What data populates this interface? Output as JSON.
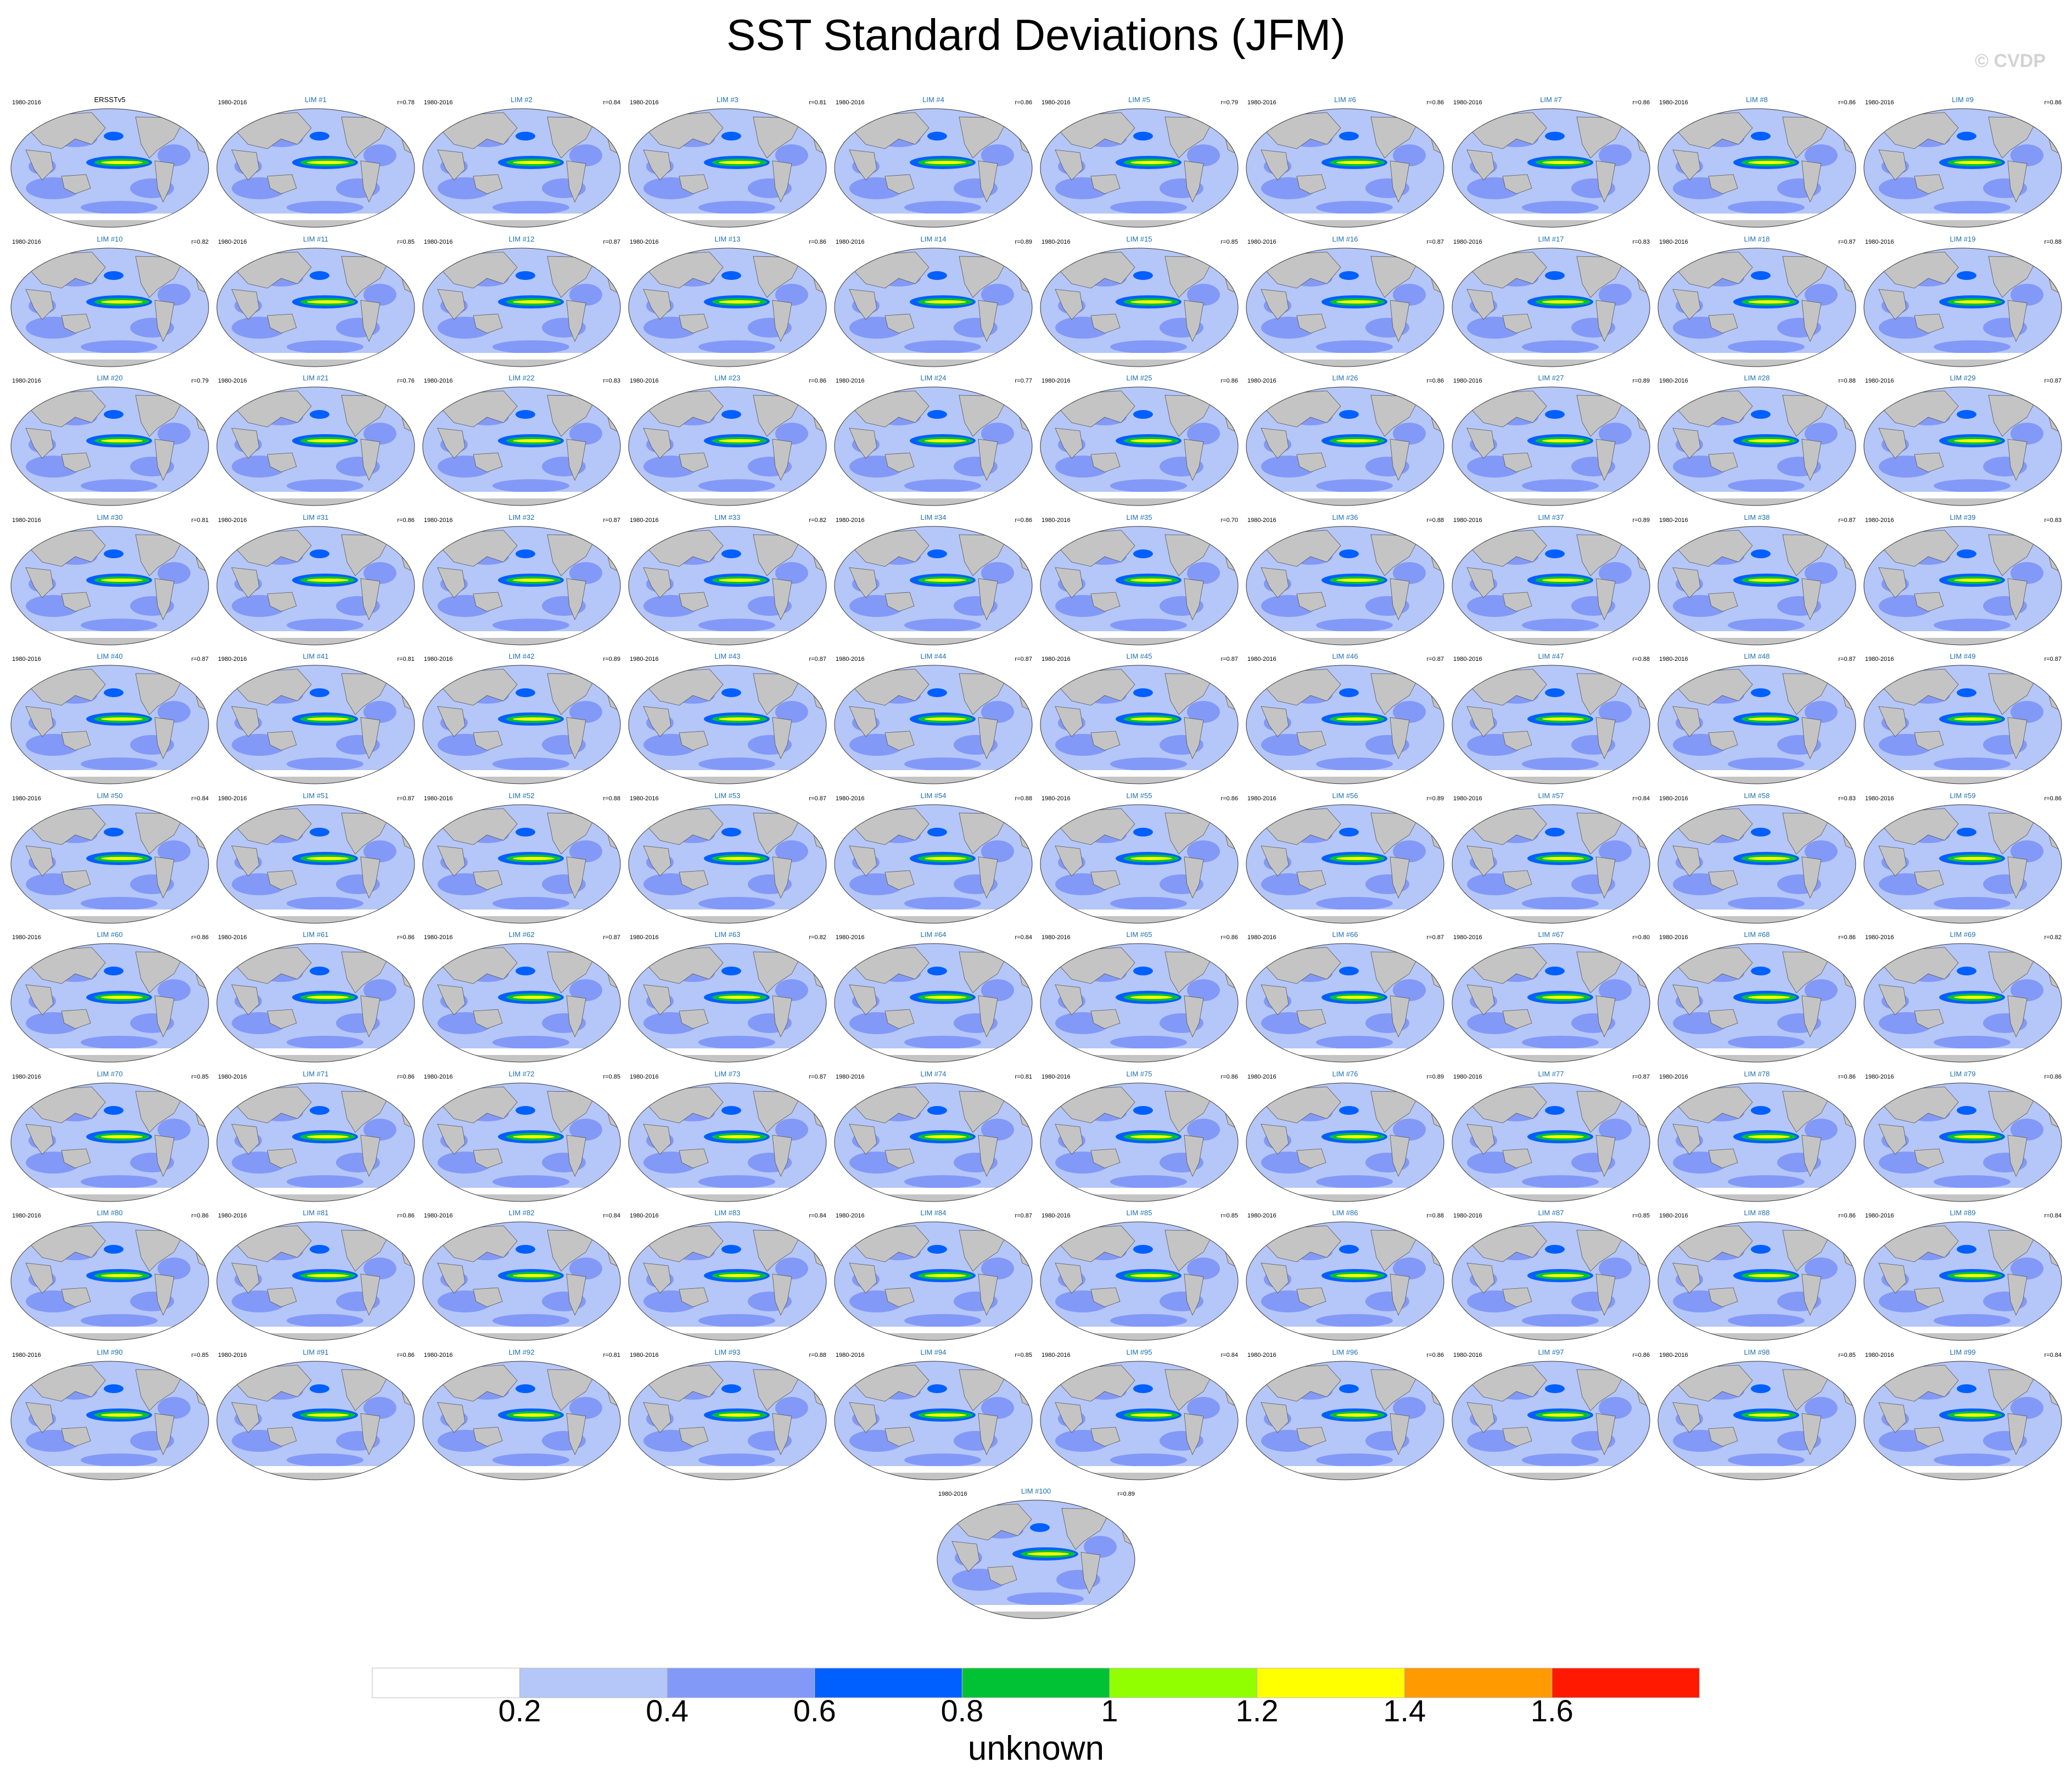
{
  "title": "SST Standard Deviations (JFM)",
  "credit": "© CVDP",
  "period": "1980-2016",
  "panels": [
    {
      "label": "ERSSTv5",
      "r": ""
    },
    {
      "label": "LIM #1",
      "r": "r=0.78"
    },
    {
      "label": "LIM #2",
      "r": "r=0.84"
    },
    {
      "label": "LIM #3",
      "r": "r=0.81"
    },
    {
      "label": "LIM #4",
      "r": "r=0.86"
    },
    {
      "label": "LIM #5",
      "r": "r=0.79"
    },
    {
      "label": "LIM #6",
      "r": "r=0.86"
    },
    {
      "label": "LIM #7",
      "r": "r=0.86"
    },
    {
      "label": "LIM #8",
      "r": "r=0.86"
    },
    {
      "label": "LIM #9",
      "r": "r=0.86"
    },
    {
      "label": "LIM #10",
      "r": "r=0.82"
    },
    {
      "label": "LIM #11",
      "r": "r=0.85"
    },
    {
      "label": "LIM #12",
      "r": "r=0.87"
    },
    {
      "label": "LIM #13",
      "r": "r=0.86"
    },
    {
      "label": "LIM #14",
      "r": "r=0.89"
    },
    {
      "label": "LIM #15",
      "r": "r=0.85"
    },
    {
      "label": "LIM #16",
      "r": "r=0.87"
    },
    {
      "label": "LIM #17",
      "r": "r=0.83"
    },
    {
      "label": "LIM #18",
      "r": "r=0.87"
    },
    {
      "label": "LIM #19",
      "r": "r=0.88"
    },
    {
      "label": "LIM #20",
      "r": "r=0.79"
    },
    {
      "label": "LIM #21",
      "r": "r=0.76"
    },
    {
      "label": "LIM #22",
      "r": "r=0.83"
    },
    {
      "label": "LIM #23",
      "r": "r=0.86"
    },
    {
      "label": "LIM #24",
      "r": "r=0.77"
    },
    {
      "label": "LIM #25",
      "r": "r=0.86"
    },
    {
      "label": "LIM #26",
      "r": "r=0.86"
    },
    {
      "label": "LIM #27",
      "r": "r=0.89"
    },
    {
      "label": "LIM #28",
      "r": "r=0.88"
    },
    {
      "label": "LIM #29",
      "r": "r=0.87"
    },
    {
      "label": "LIM #30",
      "r": "r=0.81"
    },
    {
      "label": "LIM #31",
      "r": "r=0.86"
    },
    {
      "label": "LIM #32",
      "r": "r=0.87"
    },
    {
      "label": "LIM #33",
      "r": "r=0.82"
    },
    {
      "label": "LIM #34",
      "r": "r=0.86"
    },
    {
      "label": "LIM #35",
      "r": "r=0.70"
    },
    {
      "label": "LIM #36",
      "r": "r=0.88"
    },
    {
      "label": "LIM #37",
      "r": "r=0.89"
    },
    {
      "label": "LIM #38",
      "r": "r=0.87"
    },
    {
      "label": "LIM #39",
      "r": "r=0.83"
    },
    {
      "label": "LIM #40",
      "r": "r=0.87"
    },
    {
      "label": "LIM #41",
      "r": "r=0.81"
    },
    {
      "label": "LIM #42",
      "r": "r=0.89"
    },
    {
      "label": "LIM #43",
      "r": "r=0.87"
    },
    {
      "label": "LIM #44",
      "r": "r=0.87"
    },
    {
      "label": "LIM #45",
      "r": "r=0.87"
    },
    {
      "label": "LIM #46",
      "r": "r=0.87"
    },
    {
      "label": "LIM #47",
      "r": "r=0.88"
    },
    {
      "label": "LIM #48",
      "r": "r=0.87"
    },
    {
      "label": "LIM #49",
      "r": "r=0.87"
    },
    {
      "label": "LIM #50",
      "r": "r=0.84"
    },
    {
      "label": "LIM #51",
      "r": "r=0.87"
    },
    {
      "label": "LIM #52",
      "r": "r=0.88"
    },
    {
      "label": "LIM #53",
      "r": "r=0.87"
    },
    {
      "label": "LIM #54",
      "r": "r=0.88"
    },
    {
      "label": "LIM #55",
      "r": "r=0.86"
    },
    {
      "label": "LIM #56",
      "r": "r=0.89"
    },
    {
      "label": "LIM #57",
      "r": "r=0.84"
    },
    {
      "label": "LIM #58",
      "r": "r=0.83"
    },
    {
      "label": "LIM #59",
      "r": "r=0.86"
    },
    {
      "label": "LIM #60",
      "r": "r=0.86"
    },
    {
      "label": "LIM #61",
      "r": "r=0.86"
    },
    {
      "label": "LIM #62",
      "r": "r=0.87"
    },
    {
      "label": "LIM #63",
      "r": "r=0.82"
    },
    {
      "label": "LIM #64",
      "r": "r=0.84"
    },
    {
      "label": "LIM #65",
      "r": "r=0.86"
    },
    {
      "label": "LIM #66",
      "r": "r=0.87"
    },
    {
      "label": "LIM #67",
      "r": "r=0.80"
    },
    {
      "label": "LIM #68",
      "r": "r=0.86"
    },
    {
      "label": "LIM #69",
      "r": "r=0.82"
    },
    {
      "label": "LIM #70",
      "r": "r=0.85"
    },
    {
      "label": "LIM #71",
      "r": "r=0.86"
    },
    {
      "label": "LIM #72",
      "r": "r=0.85"
    },
    {
      "label": "LIM #73",
      "r": "r=0.87"
    },
    {
      "label": "LIM #74",
      "r": "r=0.81"
    },
    {
      "label": "LIM #75",
      "r": "r=0.86"
    },
    {
      "label": "LIM #76",
      "r": "r=0.89"
    },
    {
      "label": "LIM #77",
      "r": "r=0.87"
    },
    {
      "label": "LIM #78",
      "r": "r=0.86"
    },
    {
      "label": "LIM #79",
      "r": "r=0.86"
    },
    {
      "label": "LIM #80",
      "r": "r=0.86"
    },
    {
      "label": "LIM #81",
      "r": "r=0.86"
    },
    {
      "label": "LIM #82",
      "r": "r=0.84"
    },
    {
      "label": "LIM #83",
      "r": "r=0.84"
    },
    {
      "label": "LIM #84",
      "r": "r=0.87"
    },
    {
      "label": "LIM #85",
      "r": "r=0.85"
    },
    {
      "label": "LIM #86",
      "r": "r=0.88"
    },
    {
      "label": "LIM #87",
      "r": "r=0.85"
    },
    {
      "label": "LIM #88",
      "r": "r=0.86"
    },
    {
      "label": "LIM #89",
      "r": "r=0.84"
    },
    {
      "label": "LIM #90",
      "r": "r=0.85"
    },
    {
      "label": "LIM #91",
      "r": "r=0.86"
    },
    {
      "label": "LIM #92",
      "r": "r=0.81"
    },
    {
      "label": "LIM #93",
      "r": "r=0.88"
    },
    {
      "label": "LIM #94",
      "r": "r=0.85"
    },
    {
      "label": "LIM #95",
      "r": "r=0.84"
    },
    {
      "label": "LIM #96",
      "r": "r=0.86"
    },
    {
      "label": "LIM #97",
      "r": "r=0.86"
    },
    {
      "label": "LIM #98",
      "r": "r=0.85"
    },
    {
      "label": "LIM #99",
      "r": "r=0.84"
    },
    {
      "label": "LIM #100",
      "r": "r=0.89"
    }
  ],
  "colorbar": {
    "colors": [
      "#ffffff",
      "#b5c6f8",
      "#8299f8",
      "#0060ff",
      "#00c234",
      "#91ff00",
      "#ffff00",
      "#ff9b00",
      "#ff1900"
    ],
    "tick_labels": [
      "0.2",
      "0.4",
      "0.6",
      "0.8",
      "1",
      "1.2",
      "1.4",
      "1.6"
    ],
    "title": "unknown"
  },
  "map_colors": {
    "land": "#c4c4c4",
    "coast": "#555555",
    "ocean_low": "#b5c6f8",
    "ocean_mid": "#8299f8",
    "ocean_high": "#0060ff",
    "green": "#00c234",
    "yellow": "#ffff00"
  }
}
